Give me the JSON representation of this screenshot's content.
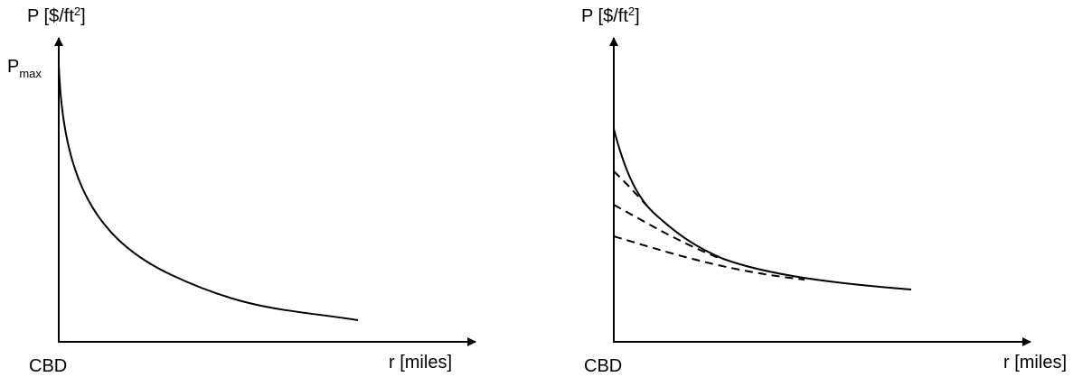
{
  "left": {
    "y_axis_label": {
      "base": "P [$/ft",
      "sup": "2",
      "end": "]"
    },
    "max_label": {
      "base": "P",
      "sub": "max"
    },
    "origin_label": "CBD",
    "x_axis_label": "r [miles]"
  },
  "right": {
    "y_axis_label": {
      "base": "P [$/ft",
      "sup": "2",
      "end": "]"
    },
    "origin_label": "CBD",
    "x_axis_label": "r [miles]"
  }
}
